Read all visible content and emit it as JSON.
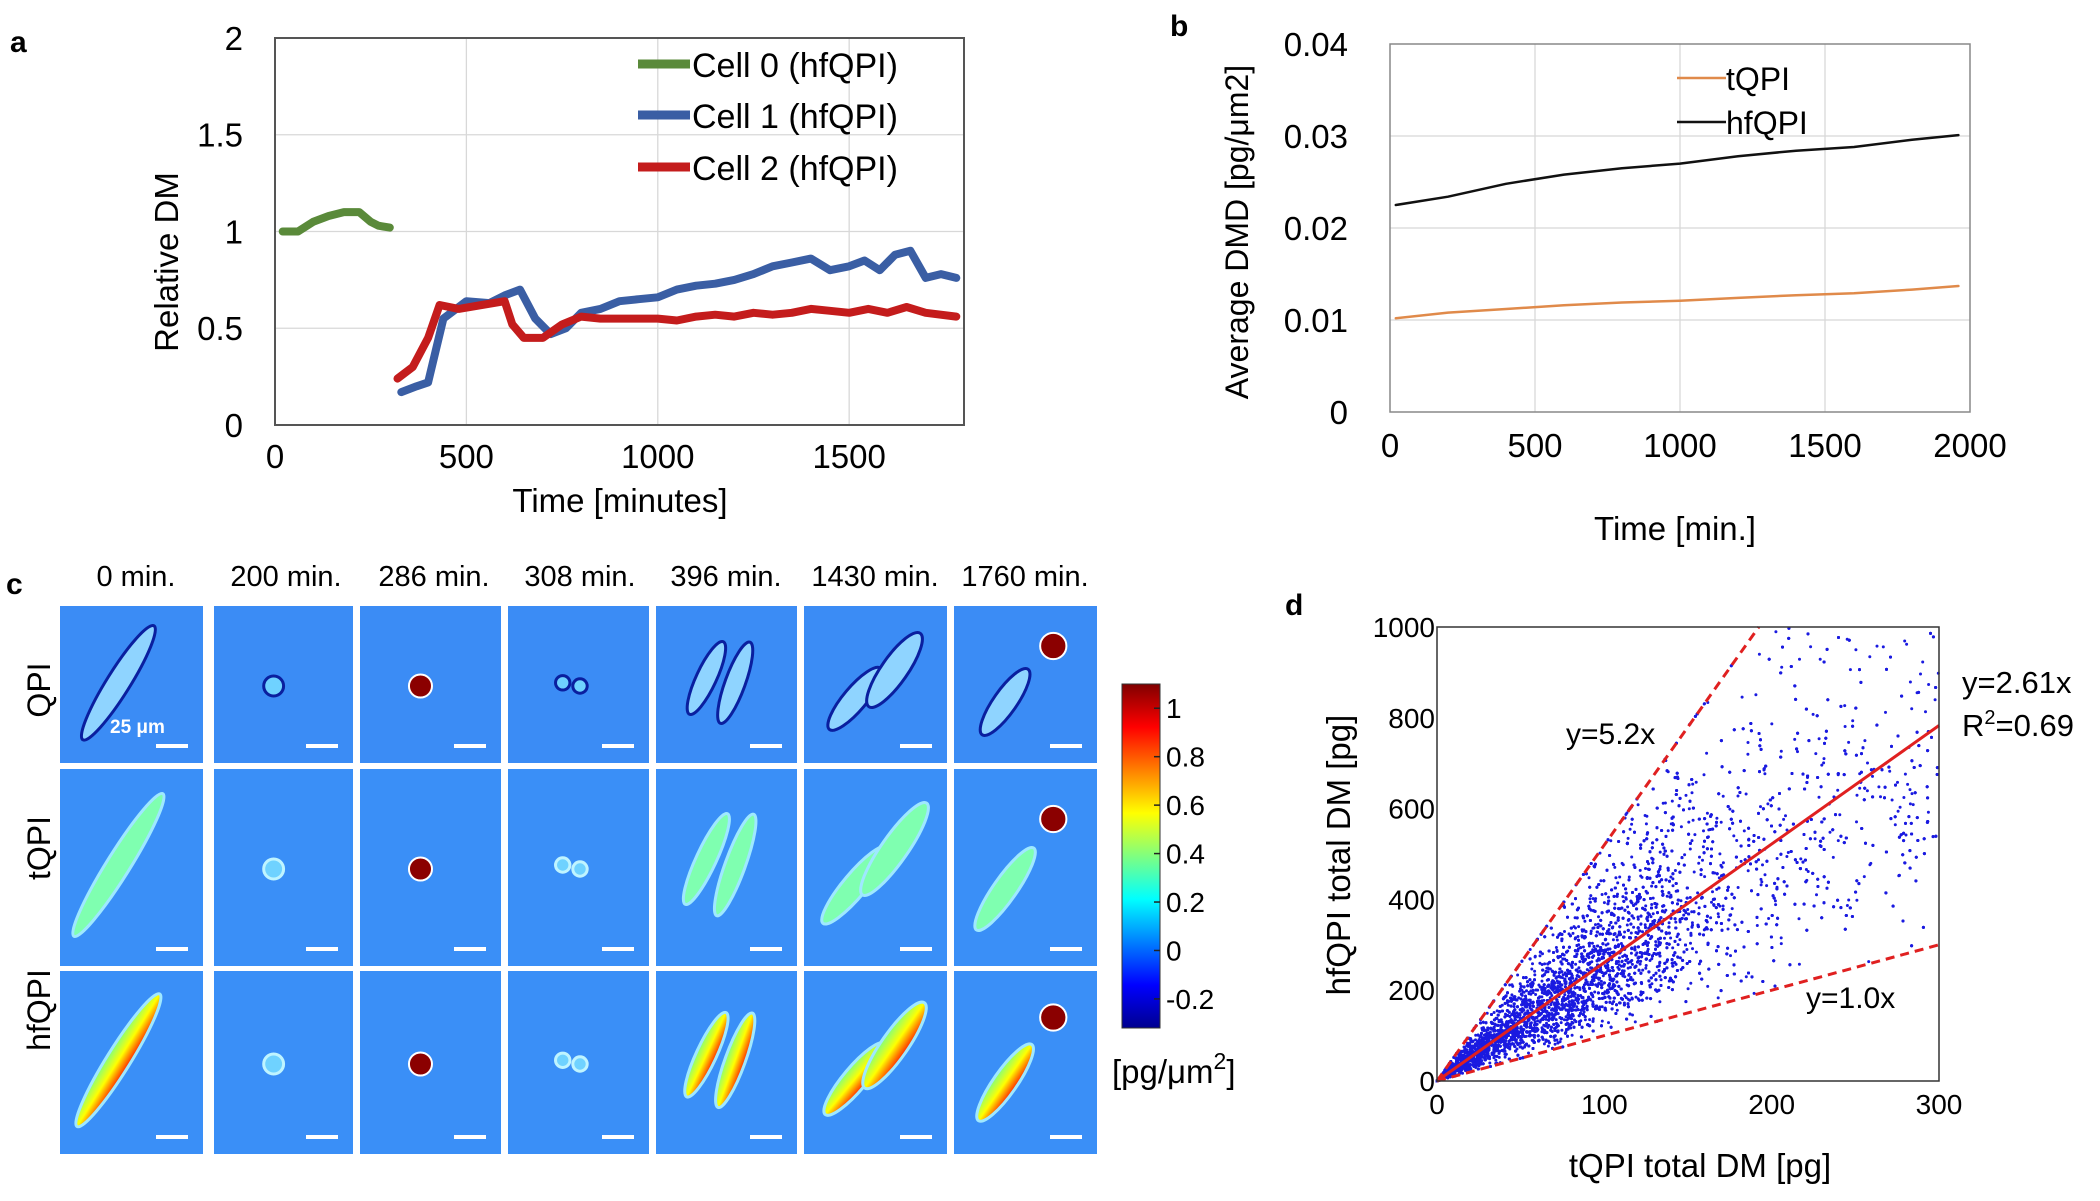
{
  "panel_labels": {
    "a": "a",
    "b": "b",
    "c": "c",
    "d": "d"
  },
  "colors": {
    "cell0": "#5a8a3a",
    "cell1": "#3a5ea4",
    "cell2": "#c41c1c",
    "tqpi": "#e08a4a",
    "hfqpi": "#111111",
    "scatter": "#1a1ae0",
    "fit": "#e02020"
  },
  "chart_data": [
    {
      "id": "a",
      "type": "line",
      "title": "",
      "xlabel": "Time [minutes]",
      "ylabel": "Relative DM",
      "xlim": [
        0,
        1800
      ],
      "ylim": [
        0,
        2
      ],
      "xticks": [
        0,
        500,
        1000,
        1500
      ],
      "yticks": [
        0,
        0.5,
        1,
        1.5,
        2
      ],
      "xtick_labels": [
        "0",
        "500",
        "1000",
        "1500"
      ],
      "ytick_labels": [
        "0",
        "0.5",
        "1",
        "1.5",
        "2"
      ],
      "grid": true,
      "legend_position": "top-right",
      "series": [
        {
          "name": "Cell 0 (hfQPI)",
          "color": "#5a8a3a",
          "x": [
            20,
            60,
            100,
            140,
            180,
            220,
            250,
            270,
            300
          ],
          "y": [
            1.0,
            1.0,
            1.05,
            1.08,
            1.1,
            1.1,
            1.05,
            1.03,
            1.02
          ]
        },
        {
          "name": "Cell 1 (hfQPI)",
          "color": "#3a5ea4",
          "x": [
            330,
            370,
            400,
            440,
            500,
            560,
            600,
            640,
            680,
            720,
            760,
            800,
            850,
            900,
            950,
            1000,
            1050,
            1100,
            1150,
            1200,
            1250,
            1300,
            1350,
            1400,
            1450,
            1500,
            1540,
            1580,
            1620,
            1660,
            1700,
            1740,
            1780
          ],
          "y": [
            0.17,
            0.2,
            0.22,
            0.55,
            0.64,
            0.63,
            0.67,
            0.7,
            0.55,
            0.47,
            0.5,
            0.58,
            0.6,
            0.64,
            0.65,
            0.66,
            0.7,
            0.72,
            0.73,
            0.75,
            0.78,
            0.82,
            0.84,
            0.86,
            0.8,
            0.82,
            0.85,
            0.8,
            0.88,
            0.9,
            0.76,
            0.78,
            0.76
          ]
        },
        {
          "name": "Cell 2 (hfQPI)",
          "color": "#c41c1c",
          "x": [
            320,
            360,
            400,
            430,
            480,
            540,
            600,
            620,
            650,
            700,
            750,
            800,
            850,
            900,
            950,
            1000,
            1050,
            1100,
            1150,
            1200,
            1250,
            1300,
            1350,
            1400,
            1450,
            1500,
            1550,
            1600,
            1650,
            1700,
            1780
          ],
          "y": [
            0.24,
            0.3,
            0.45,
            0.62,
            0.6,
            0.62,
            0.64,
            0.52,
            0.45,
            0.45,
            0.52,
            0.56,
            0.55,
            0.55,
            0.55,
            0.55,
            0.54,
            0.56,
            0.57,
            0.56,
            0.58,
            0.57,
            0.58,
            0.6,
            0.59,
            0.58,
            0.6,
            0.58,
            0.61,
            0.58,
            0.56
          ]
        }
      ]
    },
    {
      "id": "b",
      "type": "line",
      "title": "",
      "xlabel": "Time [min.]",
      "ylabel": "Average DMD [pg/μm2]",
      "xlim": [
        0,
        2000
      ],
      "ylim": [
        0,
        0.04
      ],
      "xticks": [
        0,
        500,
        1000,
        1500,
        2000
      ],
      "yticks": [
        0,
        0.01,
        0.02,
        0.03,
        0.04
      ],
      "xtick_labels": [
        "0",
        "500",
        "1000",
        "1500",
        "2000"
      ],
      "ytick_labels": [
        "0",
        "0.01",
        "0.02",
        "0.03",
        "0.04"
      ],
      "grid": true,
      "legend_position": "top-center",
      "series": [
        {
          "name": "tQPI",
          "color": "#e08a4a",
          "x": [
            20,
            200,
            400,
            600,
            800,
            1000,
            1200,
            1400,
            1600,
            1800,
            1960
          ],
          "y": [
            0.0102,
            0.0108,
            0.0112,
            0.0116,
            0.0119,
            0.0121,
            0.0124,
            0.0127,
            0.0129,
            0.0133,
            0.0137
          ]
        },
        {
          "name": "hfQPI",
          "color": "#111111",
          "x": [
            20,
            200,
            400,
            600,
            800,
            1000,
            1200,
            1400,
            1600,
            1800,
            1960
          ],
          "y": [
            0.0225,
            0.0234,
            0.0248,
            0.0258,
            0.0265,
            0.027,
            0.0278,
            0.0284,
            0.0288,
            0.0296,
            0.0301
          ]
        }
      ]
    },
    {
      "id": "d",
      "type": "scatter",
      "title": "",
      "xlabel": "tQPI total DM [pg]",
      "ylabel": "hfQPI total DM [pg]",
      "xlim": [
        0,
        300
      ],
      "ylim": [
        0,
        1000
      ],
      "xticks": [
        0,
        100,
        200,
        300
      ],
      "yticks": [
        0,
        200,
        400,
        600,
        800,
        1000
      ],
      "xtick_labels": [
        "0",
        "100",
        "200",
        "300"
      ],
      "ytick_labels": [
        "0",
        "200",
        "400",
        "600",
        "800",
        "1000"
      ],
      "fit": {
        "slope": 2.61,
        "equation": "y=2.61x",
        "r2_prefix": "R",
        "r2_superscript": "2",
        "r2_value": "=0.69"
      },
      "reference_lines": [
        {
          "slope": 5.2,
          "label": "y=5.2x"
        },
        {
          "slope": 1.0,
          "label": "y=1.0x"
        }
      ],
      "point_count_approx": 9000
    }
  ],
  "panel_c": {
    "time_labels": [
      "0 min.",
      "200 min.",
      "286 min.",
      "308 min.",
      "396 min.",
      "1430 min.",
      "1760 min."
    ],
    "row_labels": [
      "QPI",
      "tQPI",
      "hfQPI"
    ],
    "scale_bar_label": "25 μm",
    "colorbar": {
      "ticks": [
        1,
        0.8,
        0.6,
        0.4,
        0.2,
        0,
        -0.2
      ],
      "tick_labels": [
        "1",
        "0.8",
        "0.6",
        "0.4",
        "0.2",
        "0",
        "-0.2"
      ],
      "range": [
        -0.32,
        1.1
      ],
      "unit_main": "[pg/μm",
      "unit_sup": "2",
      "unit_close": "]"
    }
  }
}
